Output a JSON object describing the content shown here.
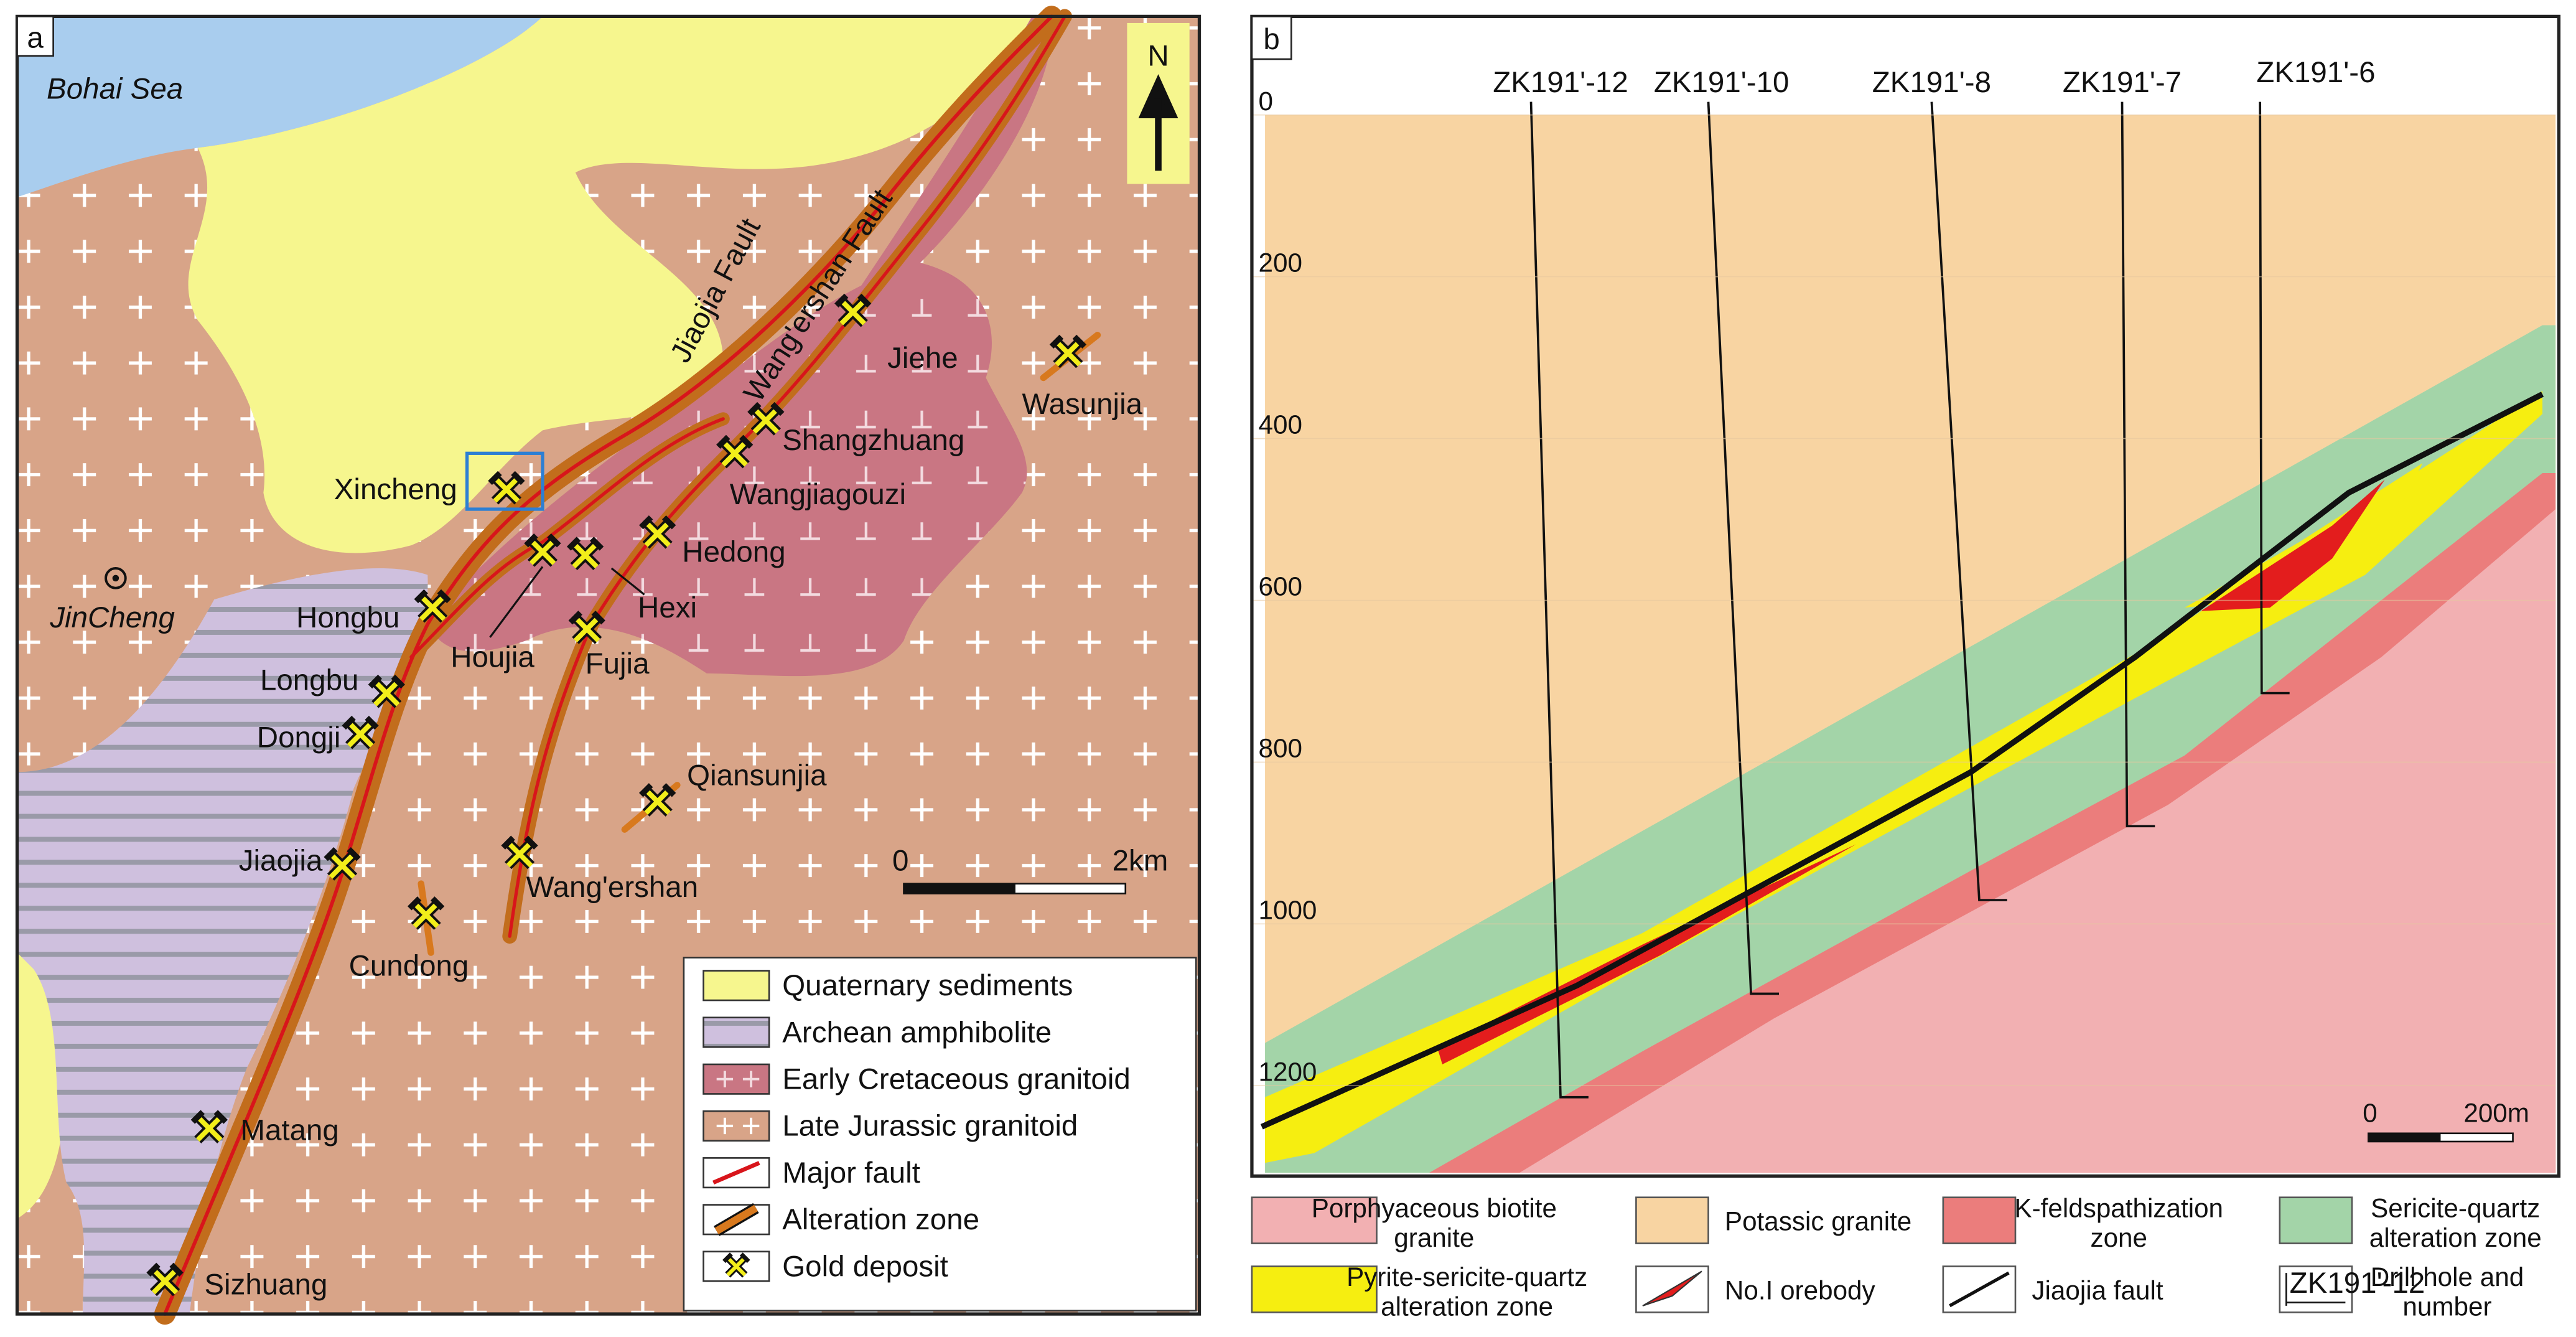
{
  "panel_a": {
    "label": "a",
    "sea": "Bohai Sea",
    "north": "N",
    "faults": [
      "Jiaojia Fault",
      "Wang'ershan Fault"
    ],
    "city": "JinCheng",
    "deposits": [
      "Xincheng",
      "Jiehe",
      "Wasunjia",
      "Shangzhuang",
      "Wangjiagouzi",
      "Hedong",
      "Hexi",
      "Houjia",
      "Hongbu",
      "Fujia",
      "Longbu",
      "Dongji",
      "Qiansunjia",
      "Jiaojia",
      "Wang'ershan",
      "Cundong",
      "Matang",
      "Sizhuang"
    ],
    "scale": [
      "0",
      "2km"
    ],
    "legend": [
      "Quaternary sediments",
      "Archean amphibolite",
      "Early Cretaceous granitoid",
      "Late Jurassic granitoid",
      "Major fault",
      "Alteration zone",
      "Gold deposit"
    ]
  },
  "panel_b": {
    "label": "b",
    "drill_holes": [
      "ZK191'-12",
      "ZK191'-10",
      "ZK191'-8",
      "ZK191'-7",
      "ZK191'-6"
    ],
    "depth_ticks": [
      0,
      200,
      400,
      600,
      800,
      1000,
      1200
    ],
    "scale": [
      "0",
      "200m"
    ],
    "legend": [
      [
        "Porphyaceous biotite",
        "granite"
      ],
      [
        "Potassic granite"
      ],
      [
        "K-feldspathization",
        "zone"
      ],
      [
        "Sericite-quartz",
        "alteration zone"
      ],
      [
        "Pyrite-sericite-quartz",
        "alteration zone"
      ],
      [
        "No.I orebody"
      ],
      [
        "Jiaojia fault"
      ],
      [
        "Drill hole and",
        "number"
      ]
    ],
    "legend_icon_label": "ZK191'-12"
  }
}
